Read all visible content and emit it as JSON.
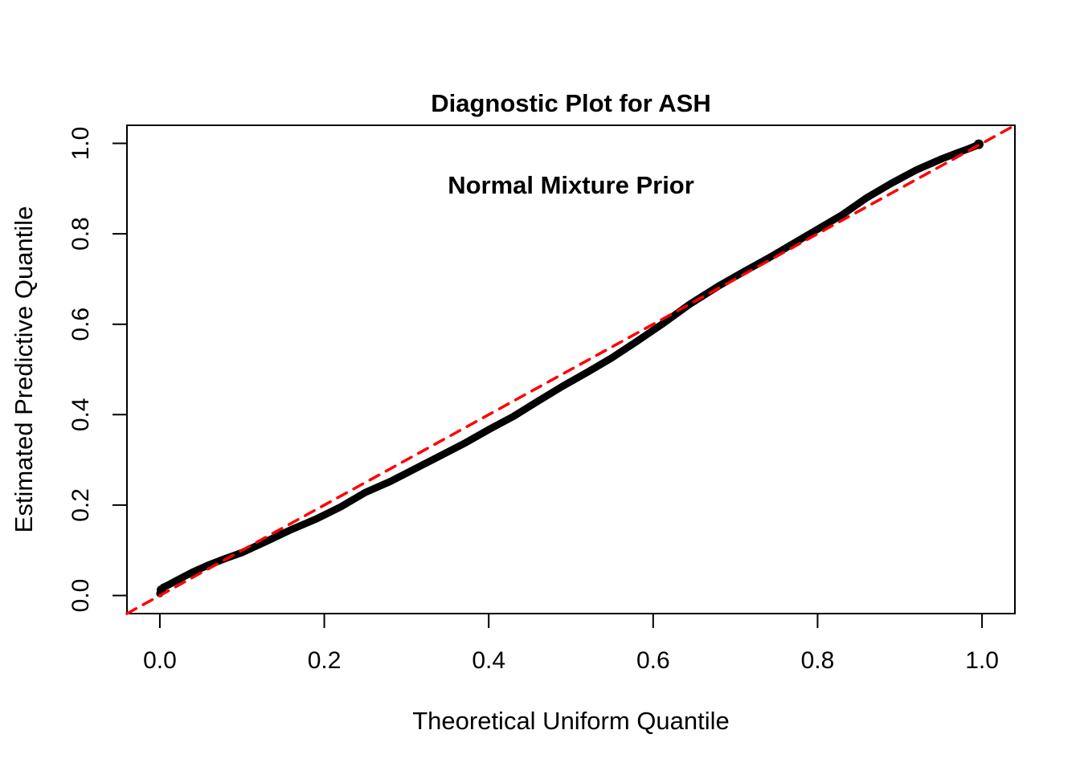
{
  "figure": {
    "background": "#ffffff",
    "title_line1": "Diagnostic Plot for ASH",
    "title_line2": "Normal Mixture Prior"
  },
  "chart_data": {
    "type": "scatter",
    "title": "Diagnostic Plot for ASH — Normal Mixture Prior",
    "xlabel": "Theoretical Uniform Quantile",
    "ylabel": "Estimated Predictive Quantile",
    "xlim": [
      -0.04,
      1.04
    ],
    "ylim": [
      -0.04,
      1.04
    ],
    "x_ticks": [
      0.0,
      0.2,
      0.4,
      0.6,
      0.8,
      1.0
    ],
    "y_ticks": [
      0.0,
      0.2,
      0.4,
      0.6,
      0.8,
      1.0
    ],
    "x_tick_labels": [
      "0.0",
      "0.2",
      "0.4",
      "0.6",
      "0.8",
      "1.0"
    ],
    "y_tick_labels": [
      "0.0",
      "0.2",
      "0.4",
      "0.6",
      "0.8",
      "1.0"
    ],
    "grid": false,
    "legend": null,
    "frame_color": "#000000",
    "series": [
      {
        "name": "estimated-predictive-quantile-curve",
        "type": "thick-point-curve",
        "color": "#000000",
        "line_width": 9,
        "points": [
          [
            0.0,
            0.004
          ],
          [
            0.002,
            0.013
          ],
          [
            0.004,
            0.018
          ],
          [
            0.01,
            0.023
          ],
          [
            0.02,
            0.033
          ],
          [
            0.04,
            0.052
          ],
          [
            0.06,
            0.068
          ],
          [
            0.08,
            0.082
          ],
          [
            0.1,
            0.095
          ],
          [
            0.13,
            0.12
          ],
          [
            0.16,
            0.146
          ],
          [
            0.19,
            0.169
          ],
          [
            0.22,
            0.196
          ],
          [
            0.25,
            0.228
          ],
          [
            0.28,
            0.252
          ],
          [
            0.31,
            0.28
          ],
          [
            0.34,
            0.308
          ],
          [
            0.37,
            0.336
          ],
          [
            0.4,
            0.367
          ],
          [
            0.43,
            0.396
          ],
          [
            0.46,
            0.43
          ],
          [
            0.49,
            0.463
          ],
          [
            0.52,
            0.494
          ],
          [
            0.55,
            0.526
          ],
          [
            0.58,
            0.562
          ],
          [
            0.61,
            0.599
          ],
          [
            0.645,
            0.645
          ],
          [
            0.68,
            0.685
          ],
          [
            0.71,
            0.716
          ],
          [
            0.74,
            0.746
          ],
          [
            0.77,
            0.778
          ],
          [
            0.8,
            0.81
          ],
          [
            0.83,
            0.842
          ],
          [
            0.86,
            0.88
          ],
          [
            0.89,
            0.912
          ],
          [
            0.92,
            0.941
          ],
          [
            0.95,
            0.965
          ],
          [
            0.97,
            0.979
          ],
          [
            0.985,
            0.989
          ],
          [
            0.993,
            0.995
          ],
          [
            0.997,
            1.0
          ]
        ],
        "end_blobs": [
          {
            "x": 0.002,
            "y": 0.012,
            "r": 6
          },
          {
            "x": 0.996,
            "y": 0.998,
            "r": 6
          }
        ]
      },
      {
        "name": "reference-diagonal-y-equals-x",
        "type": "line",
        "style": "dashed",
        "color": "#ff0000",
        "line_width": 3.5,
        "dash": [
          13,
          10
        ],
        "points": [
          [
            -0.04,
            -0.04
          ],
          [
            1.04,
            1.04
          ]
        ]
      }
    ]
  }
}
